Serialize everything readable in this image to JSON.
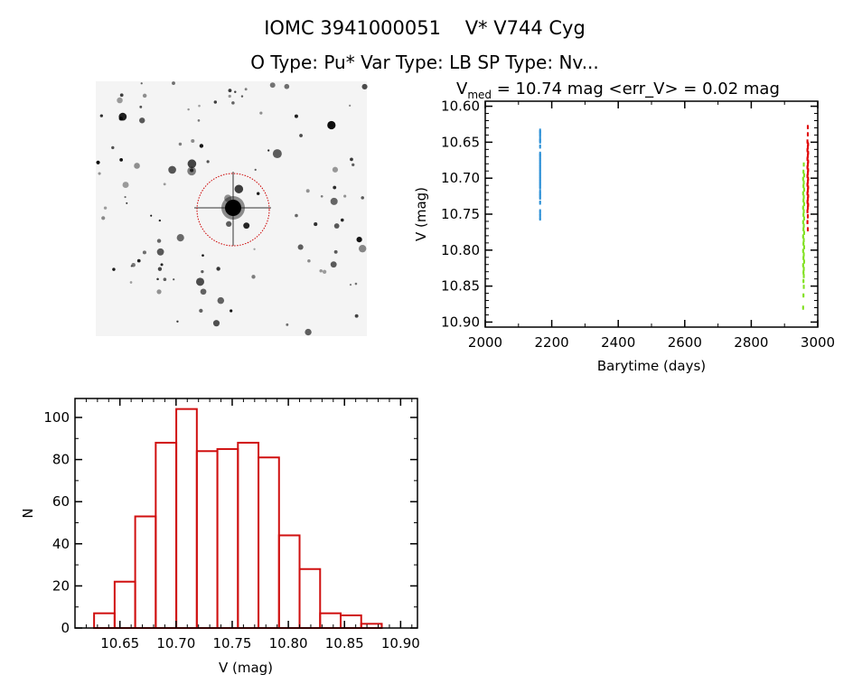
{
  "header": {
    "title": "IOMC 3941000051    V* V744 Cyg",
    "subtitle": "O Type: Pu*  Var Type: LB  SP Type: Nv..."
  },
  "finder_image": {
    "description_colors": {
      "circle": "#cc0000",
      "background": "#f4f4f4"
    }
  },
  "chart_data": [
    {
      "type": "scatter",
      "title_main": "V",
      "title_sub": "med",
      "title_rest": " = 10.74 mag <err_V> = 0.02 mag",
      "xlabel": "Barytime (days)",
      "ylabel": "V (mag)",
      "xlim": [
        2000,
        3000
      ],
      "ylim": [
        10.907,
        10.593
      ],
      "y_inverted": true,
      "xticks": [
        "2000",
        "2200",
        "2400",
        "2600",
        "2800",
        "3000"
      ],
      "yticks": [
        "10.60",
        "10.65",
        "10.70",
        "10.75",
        "10.80",
        "10.85",
        "10.90"
      ],
      "grid": false,
      "series": [
        {
          "color": "#2a8fd6",
          "points": [
            [
              2165,
              10.633
            ],
            [
              2165,
              10.636
            ],
            [
              2165,
              10.64
            ],
            [
              2165,
              10.645
            ],
            [
              2165,
              10.648
            ],
            [
              2165,
              10.655
            ],
            [
              2165,
              10.665
            ],
            [
              2165,
              10.668
            ],
            [
              2165,
              10.672
            ],
            [
              2165,
              10.676
            ],
            [
              2165,
              10.68
            ],
            [
              2165,
              10.684
            ],
            [
              2165,
              10.688
            ],
            [
              2165,
              10.692
            ],
            [
              2165,
              10.696
            ],
            [
              2165,
              10.7
            ],
            [
              2165,
              10.704
            ],
            [
              2165,
              10.708
            ],
            [
              2165,
              10.712
            ],
            [
              2165,
              10.718
            ],
            [
              2165,
              10.722
            ],
            [
              2165,
              10.726
            ],
            [
              2165,
              10.733
            ],
            [
              2165,
              10.745
            ],
            [
              2165,
              10.75
            ],
            [
              2165,
              10.755
            ]
          ]
        },
        {
          "color": "#80e020",
          "points": [
            [
              2958,
              10.68
            ],
            [
              2957,
              10.69
            ],
            [
              2959,
              10.695
            ],
            [
              2956,
              10.7
            ],
            [
              2958,
              10.705
            ],
            [
              2957,
              10.71
            ],
            [
              2959,
              10.715
            ],
            [
              2956,
              10.72
            ],
            [
              2958,
              10.725
            ],
            [
              2957,
              10.73
            ],
            [
              2959,
              10.735
            ],
            [
              2956,
              10.74
            ],
            [
              2958,
              10.745
            ],
            [
              2957,
              10.75
            ],
            [
              2959,
              10.755
            ],
            [
              2956,
              10.76
            ],
            [
              2958,
              10.765
            ],
            [
              2957,
              10.77
            ],
            [
              2959,
              10.775
            ],
            [
              2956,
              10.78
            ],
            [
              2958,
              10.785
            ],
            [
              2957,
              10.79
            ],
            [
              2959,
              10.795
            ],
            [
              2956,
              10.8
            ],
            [
              2958,
              10.805
            ],
            [
              2957,
              10.81
            ],
            [
              2959,
              10.815
            ],
            [
              2956,
              10.82
            ],
            [
              2958,
              10.825
            ],
            [
              2957,
              10.83
            ],
            [
              2958,
              10.835
            ],
            [
              2957,
              10.842
            ],
            [
              2958,
              10.85
            ],
            [
              2957,
              10.862
            ],
            [
              2956,
              10.879
            ]
          ]
        },
        {
          "color": "#e00000",
          "points": [
            [
              2970,
              10.628
            ],
            [
              2970,
              10.638
            ],
            [
              2969,
              10.648
            ],
            [
              2971,
              10.652
            ],
            [
              2970,
              10.656
            ],
            [
              2969,
              10.66
            ],
            [
              2971,
              10.664
            ],
            [
              2970,
              10.668
            ],
            [
              2969,
              10.672
            ],
            [
              2971,
              10.676
            ],
            [
              2970,
              10.68
            ],
            [
              2969,
              10.684
            ],
            [
              2971,
              10.688
            ],
            [
              2970,
              10.692
            ],
            [
              2969,
              10.696
            ],
            [
              2971,
              10.7
            ],
            [
              2970,
              10.704
            ],
            [
              2969,
              10.708
            ],
            [
              2971,
              10.712
            ],
            [
              2970,
              10.716
            ],
            [
              2969,
              10.72
            ],
            [
              2971,
              10.724
            ],
            [
              2970,
              10.728
            ],
            [
              2969,
              10.732
            ],
            [
              2971,
              10.736
            ],
            [
              2970,
              10.74
            ],
            [
              2969,
              10.745
            ],
            [
              2970,
              10.752
            ],
            [
              2969,
              10.76
            ],
            [
              2970,
              10.77
            ]
          ]
        }
      ]
    },
    {
      "type": "bar",
      "subtype": "histogram",
      "xlabel": "V (mag)",
      "ylabel": "N",
      "xlim": [
        10.61,
        10.915
      ],
      "ylim": [
        0,
        109
      ],
      "xticks": [
        "10.65",
        "10.70",
        "10.75",
        "10.80",
        "10.85",
        "10.90"
      ],
      "yticks": [
        "0",
        "20",
        "40",
        "60",
        "80",
        "100"
      ],
      "bin_start": 10.627,
      "bin_width": 0.0183,
      "values": [
        7,
        22,
        53,
        88,
        104,
        84,
        85,
        88,
        81,
        44,
        28,
        7,
        6,
        2
      ],
      "color": "#d01010",
      "grid": false
    }
  ]
}
